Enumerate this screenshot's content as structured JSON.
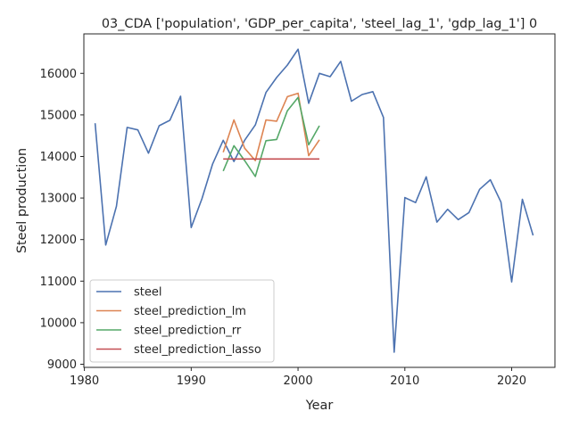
{
  "chart_data": {
    "type": "line",
    "title": "03_CDA ['population', 'GDP_per_capita', 'steel_lag_1', 'gdp_lag_1'] 0",
    "xlabel": "Year",
    "ylabel": "Steel production",
    "xlim": [
      1979.95,
      2024.05
    ],
    "ylim": [
      8925,
      16950
    ],
    "xticks": [
      "1980",
      "1990",
      "2000",
      "2010",
      "2020"
    ],
    "yticks": [
      "9000",
      "10000",
      "11000",
      "12000",
      "13000",
      "14000",
      "15000",
      "16000"
    ],
    "grid": false,
    "legend_position": "lower left",
    "series": [
      {
        "name": "steel",
        "color": "#4c72b0",
        "x": [
          1981,
          1982,
          1983,
          1984,
          1985,
          1986,
          1987,
          1988,
          1989,
          1990,
          1991,
          1992,
          1993,
          1994,
          1995,
          1996,
          1997,
          1998,
          1999,
          2000,
          2001,
          2002,
          2003,
          2004,
          2005,
          2006,
          2007,
          2008,
          2009,
          2010,
          2011,
          2012,
          2013,
          2014,
          2015,
          2016,
          2017,
          2018,
          2019,
          2020,
          2021,
          2022
        ],
        "y": [
          14800,
          11870,
          12800,
          14700,
          14640,
          14080,
          14740,
          14870,
          15450,
          12290,
          12980,
          13820,
          14390,
          13880,
          14390,
          14760,
          15540,
          15900,
          16200,
          16580,
          15280,
          16000,
          15920,
          16290,
          15330,
          15490,
          15560,
          14940,
          9290,
          13010,
          12890,
          13510,
          12420,
          12730,
          12480,
          12650,
          13210,
          13440,
          12900,
          10980,
          12970,
          12100
        ]
      },
      {
        "name": "steel_prediction_lm",
        "color": "#dd8452",
        "x": [
          1993,
          1994,
          1995,
          1996,
          1997,
          1998,
          1999,
          2000,
          2001,
          2002
        ],
        "y": [
          14100,
          14880,
          14200,
          13900,
          14880,
          14850,
          15440,
          15520,
          14020,
          14400
        ]
      },
      {
        "name": "steel_prediction_rr",
        "color": "#55a868",
        "x": [
          1993,
          1994,
          1995,
          1996,
          1997,
          1998,
          1999,
          2000,
          2001,
          2002
        ],
        "y": [
          13650,
          14260,
          13900,
          13520,
          14380,
          14410,
          15100,
          15420,
          14280,
          14740
        ]
      },
      {
        "name": "steel_prediction_lasso",
        "color": "#c44e52",
        "x": [
          1993,
          1994,
          1995,
          1996,
          1997,
          1998,
          1999,
          2000,
          2001,
          2002
        ],
        "y": [
          13940,
          13940,
          13940,
          13940,
          13940,
          13940,
          13940,
          13940,
          13940,
          13940
        ]
      }
    ]
  }
}
